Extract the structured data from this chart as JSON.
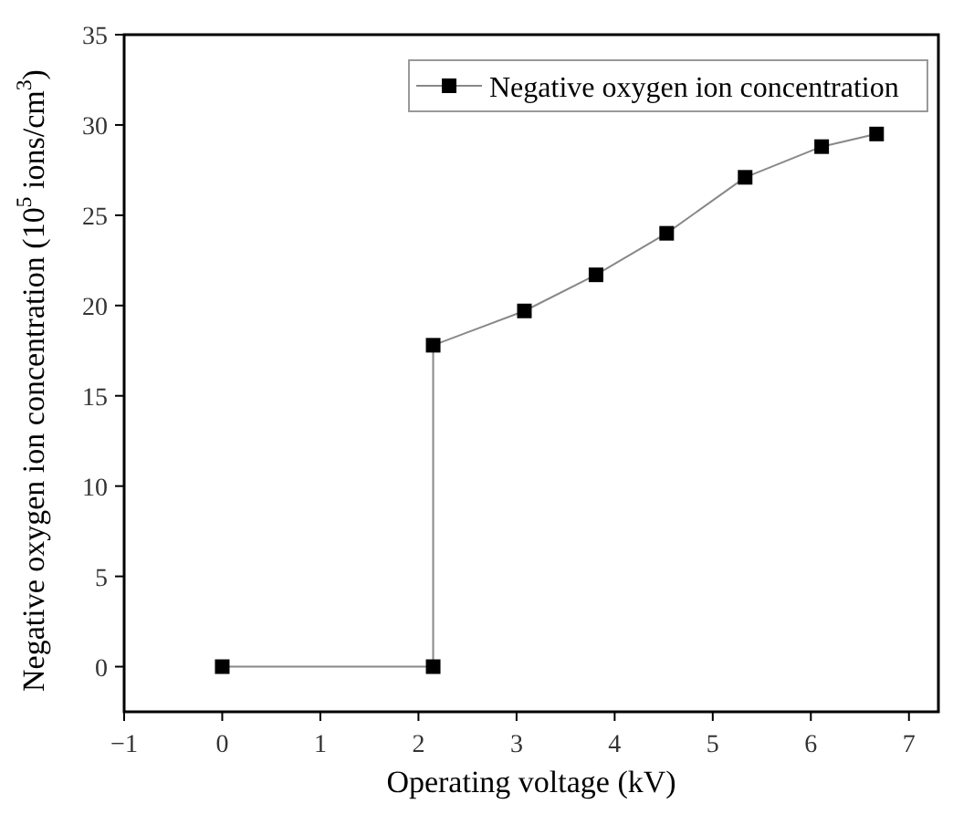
{
  "chart_data": {
    "type": "line",
    "xlabel": "Operating voltage (kV)",
    "ylabel": "Negative oxygen ion concentration (10$^{5}$ ions/cm$^{3}$)",
    "series": [
      {
        "name": "Negative oxygen ion concentration",
        "color": "#000000",
        "x": [
          0,
          2.15,
          2.15,
          3.08,
          3.81,
          4.53,
          5.33,
          6.11,
          6.67
        ],
        "values": [
          0,
          0,
          17.8,
          19.7,
          21.7,
          24.0,
          27.1,
          28.8,
          29.5
        ]
      }
    ],
    "xlim": [
      -1,
      7.3
    ],
    "xticks": [
      -1,
      0,
      1,
      2,
      3,
      4,
      5,
      6,
      7
    ],
    "ylim": [
      -2.5,
      35
    ],
    "yticks": [
      0,
      5,
      10,
      15,
      20,
      25,
      30,
      35
    ],
    "marker": "square",
    "legend": "top right",
    "grid": false
  }
}
